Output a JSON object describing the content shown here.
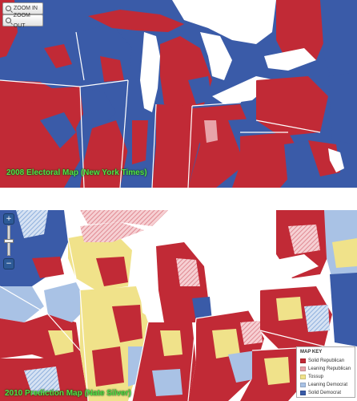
{
  "top_map": {
    "caption": "2008 Electoral Map (New York Times)",
    "controls": {
      "zoom_in_label": "ZOOM IN",
      "zoom_out_label": "ZOOM OUT"
    }
  },
  "bottom_map": {
    "caption": "2010 Prediction Map (Nate Silver)",
    "controls": {
      "plus": "+",
      "minus": "−"
    },
    "map_key": {
      "title": "MAP KEY",
      "items": [
        {
          "label": "Solid Republican",
          "color": "#c12a36"
        },
        {
          "label": "Leaning Republican",
          "color": "#e8a3a9"
        },
        {
          "label": "Tossup",
          "color": "#f0e28a"
        },
        {
          "label": "Leaning Democrat",
          "color": "#a9c2e5"
        },
        {
          "label": "Solid Democrat",
          "color": "#3a5ba8"
        }
      ]
    }
  },
  "colors": {
    "solid_republican": "#c12a36",
    "leaning_republican": "#e8a3a9",
    "tossup": "#f0e28a",
    "leaning_democrat": "#a9c2e5",
    "solid_democrat": "#3a5ba8",
    "lake": "#ffffff",
    "caption": "#54e04a"
  }
}
